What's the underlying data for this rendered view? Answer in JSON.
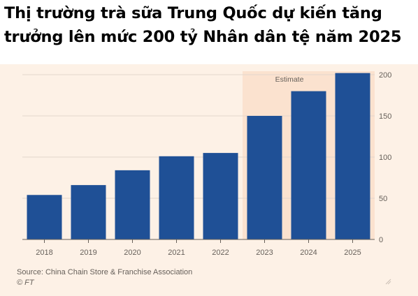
{
  "title_lines": [
    "Thị trường trà sữa Trung Quốc dự kiến tăng",
    "trưởng lên mức 200 tỷ Nhân dân tệ năm 2025"
  ],
  "source": "Source: China Chain Store & Franchise Association",
  "copyright": "© FT",
  "chart_data": {
    "type": "bar",
    "categories": [
      "2018",
      "2019",
      "2020",
      "2021",
      "2022",
      "2023",
      "2024",
      "2025"
    ],
    "values": [
      54,
      66,
      84,
      101,
      105,
      150,
      180,
      202
    ],
    "ylim": [
      0,
      200
    ],
    "yticks": [
      0,
      50,
      100,
      150,
      200
    ],
    "y_axis_side": "right",
    "grid": true,
    "estimate_label": "Estimate",
    "estimate_categories": [
      "2023",
      "2024",
      "2025"
    ],
    "bar_color": "#1f5096",
    "estimate_shade_color": "#fbe2cf"
  }
}
